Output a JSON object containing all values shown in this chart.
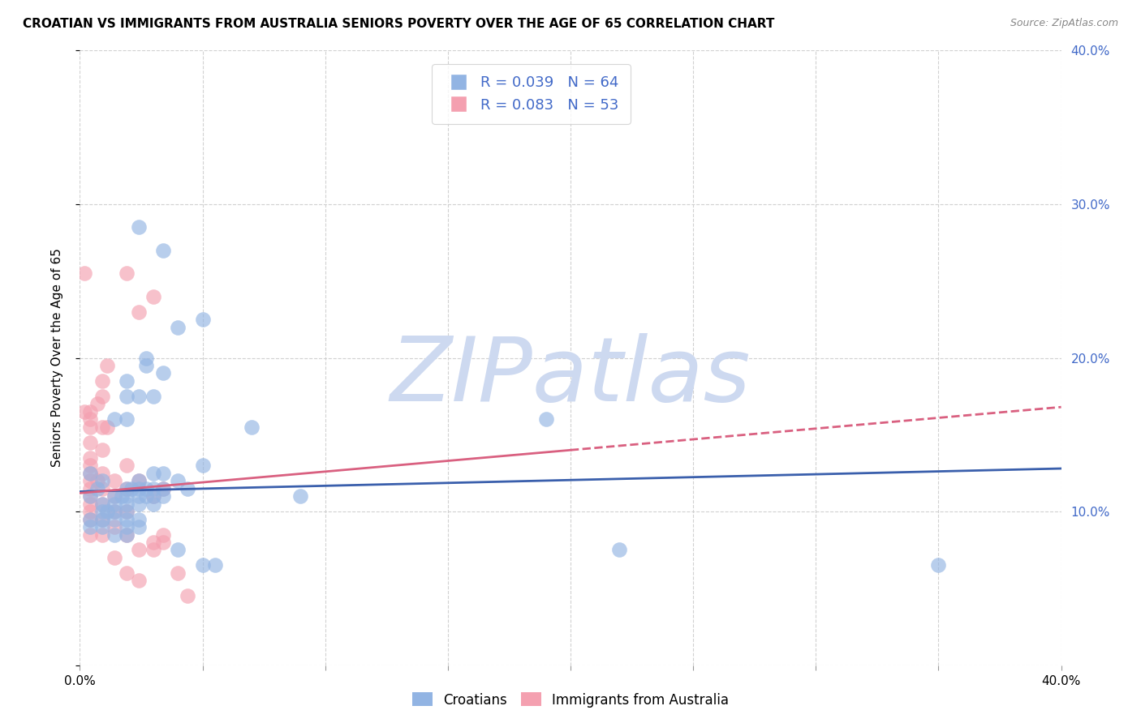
{
  "title": "CROATIAN VS IMMIGRANTS FROM AUSTRALIA SENIORS POVERTY OVER THE AGE OF 65 CORRELATION CHART",
  "source": "Source: ZipAtlas.com",
  "ylabel": "Seniors Poverty Over the Age of 65",
  "xlim": [
    0.0,
    0.4
  ],
  "ylim": [
    0.0,
    0.4
  ],
  "xticks": [
    0.0,
    0.05,
    0.1,
    0.15,
    0.2,
    0.25,
    0.3,
    0.35,
    0.4
  ],
  "yticks": [
    0.0,
    0.1,
    0.2,
    0.3,
    0.4
  ],
  "legend_blue_label": "Croatians",
  "legend_pink_label": "Immigrants from Australia",
  "r_blue": "R = 0.039",
  "n_blue": "N = 64",
  "r_pink": "R = 0.083",
  "n_pink": "N = 53",
  "blue_color": "#92b4e3",
  "pink_color": "#f4a0b0",
  "line_blue_color": "#3a5fac",
  "line_pink_color": "#d96080",
  "watermark": "ZIPatlas",
  "blue_points": [
    [
      0.004,
      0.125
    ],
    [
      0.004,
      0.11
    ],
    [
      0.004,
      0.095
    ],
    [
      0.004,
      0.09
    ],
    [
      0.007,
      0.115
    ],
    [
      0.009,
      0.12
    ],
    [
      0.009,
      0.105
    ],
    [
      0.009,
      0.1
    ],
    [
      0.009,
      0.095
    ],
    [
      0.009,
      0.09
    ],
    [
      0.011,
      0.1
    ],
    [
      0.014,
      0.16
    ],
    [
      0.014,
      0.11
    ],
    [
      0.014,
      0.105
    ],
    [
      0.014,
      0.1
    ],
    [
      0.014,
      0.095
    ],
    [
      0.014,
      0.085
    ],
    [
      0.017,
      0.11
    ],
    [
      0.019,
      0.185
    ],
    [
      0.019,
      0.175
    ],
    [
      0.019,
      0.16
    ],
    [
      0.019,
      0.115
    ],
    [
      0.019,
      0.11
    ],
    [
      0.019,
      0.105
    ],
    [
      0.019,
      0.1
    ],
    [
      0.019,
      0.095
    ],
    [
      0.019,
      0.09
    ],
    [
      0.019,
      0.085
    ],
    [
      0.021,
      0.115
    ],
    [
      0.024,
      0.285
    ],
    [
      0.024,
      0.175
    ],
    [
      0.024,
      0.12
    ],
    [
      0.024,
      0.115
    ],
    [
      0.024,
      0.11
    ],
    [
      0.024,
      0.105
    ],
    [
      0.024,
      0.095
    ],
    [
      0.024,
      0.09
    ],
    [
      0.027,
      0.2
    ],
    [
      0.027,
      0.195
    ],
    [
      0.027,
      0.115
    ],
    [
      0.027,
      0.11
    ],
    [
      0.03,
      0.175
    ],
    [
      0.03,
      0.125
    ],
    [
      0.03,
      0.115
    ],
    [
      0.03,
      0.11
    ],
    [
      0.03,
      0.105
    ],
    [
      0.034,
      0.27
    ],
    [
      0.034,
      0.19
    ],
    [
      0.034,
      0.125
    ],
    [
      0.034,
      0.115
    ],
    [
      0.034,
      0.11
    ],
    [
      0.04,
      0.22
    ],
    [
      0.04,
      0.12
    ],
    [
      0.04,
      0.075
    ],
    [
      0.044,
      0.115
    ],
    [
      0.05,
      0.225
    ],
    [
      0.05,
      0.13
    ],
    [
      0.05,
      0.065
    ],
    [
      0.055,
      0.065
    ],
    [
      0.07,
      0.155
    ],
    [
      0.09,
      0.11
    ],
    [
      0.19,
      0.16
    ],
    [
      0.22,
      0.075
    ],
    [
      0.35,
      0.065
    ]
  ],
  "pink_points": [
    [
      0.002,
      0.255
    ],
    [
      0.002,
      0.165
    ],
    [
      0.004,
      0.165
    ],
    [
      0.004,
      0.16
    ],
    [
      0.004,
      0.155
    ],
    [
      0.004,
      0.145
    ],
    [
      0.004,
      0.135
    ],
    [
      0.004,
      0.13
    ],
    [
      0.004,
      0.125
    ],
    [
      0.004,
      0.12
    ],
    [
      0.004,
      0.115
    ],
    [
      0.004,
      0.11
    ],
    [
      0.004,
      0.105
    ],
    [
      0.004,
      0.1
    ],
    [
      0.004,
      0.095
    ],
    [
      0.004,
      0.085
    ],
    [
      0.007,
      0.17
    ],
    [
      0.007,
      0.12
    ],
    [
      0.009,
      0.185
    ],
    [
      0.009,
      0.175
    ],
    [
      0.009,
      0.155
    ],
    [
      0.009,
      0.14
    ],
    [
      0.009,
      0.125
    ],
    [
      0.009,
      0.115
    ],
    [
      0.009,
      0.105
    ],
    [
      0.009,
      0.095
    ],
    [
      0.009,
      0.085
    ],
    [
      0.011,
      0.195
    ],
    [
      0.011,
      0.155
    ],
    [
      0.014,
      0.12
    ],
    [
      0.014,
      0.11
    ],
    [
      0.014,
      0.1
    ],
    [
      0.014,
      0.09
    ],
    [
      0.014,
      0.07
    ],
    [
      0.019,
      0.255
    ],
    [
      0.019,
      0.13
    ],
    [
      0.019,
      0.115
    ],
    [
      0.019,
      0.1
    ],
    [
      0.019,
      0.085
    ],
    [
      0.019,
      0.06
    ],
    [
      0.024,
      0.23
    ],
    [
      0.024,
      0.12
    ],
    [
      0.024,
      0.075
    ],
    [
      0.024,
      0.055
    ],
    [
      0.03,
      0.24
    ],
    [
      0.03,
      0.11
    ],
    [
      0.03,
      0.08
    ],
    [
      0.03,
      0.075
    ],
    [
      0.034,
      0.115
    ],
    [
      0.034,
      0.085
    ],
    [
      0.034,
      0.08
    ],
    [
      0.04,
      0.06
    ],
    [
      0.044,
      0.045
    ]
  ],
  "blue_line": {
    "x0": 0.0,
    "y0": 0.113,
    "x1": 0.4,
    "y1": 0.128
  },
  "pink_line_solid": {
    "x0": 0.0,
    "y0": 0.112,
    "x1": 0.2,
    "y1": 0.14
  },
  "pink_line_dashed": {
    "x0": 0.2,
    "y0": 0.14,
    "x1": 0.4,
    "y1": 0.168
  },
  "background_color": "#ffffff",
  "grid_color": "#cccccc",
  "title_fontsize": 11,
  "axis_label_fontsize": 11,
  "tick_fontsize": 11,
  "watermark_color": "#cdd9f0",
  "watermark_fontsize": 80,
  "scatter_size": 180,
  "scatter_alpha": 0.65
}
